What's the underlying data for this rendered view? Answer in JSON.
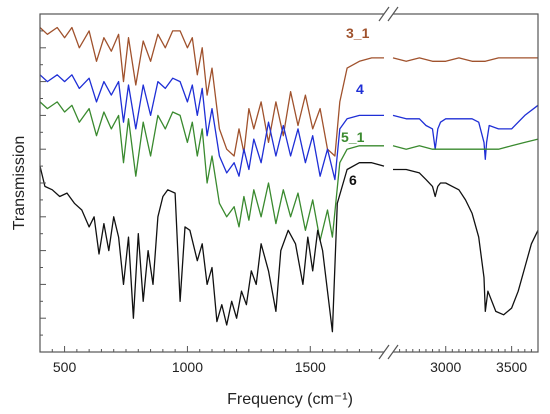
{
  "chart_data": {
    "type": "line",
    "title": "",
    "xlabel": "Frequency (cm⁻¹)",
    "ylabel": "Transmission",
    "x_axis_break": [
      1800,
      2600
    ],
    "xlim_left": [
      400,
      1800
    ],
    "xlim_right": [
      2600,
      3700
    ],
    "ylim": [
      0,
      1
    ],
    "x_ticks": [
      {
        "value": 500,
        "label": "500"
      },
      {
        "value": 1000,
        "label": "1000"
      },
      {
        "value": 1500,
        "label": "1500"
      },
      {
        "value": 3000,
        "label": "3000"
      },
      {
        "value": 3500,
        "label": "3500"
      }
    ],
    "grid": false,
    "legend": "series labels at right end of each curve",
    "series": [
      {
        "name": "3_1",
        "color": "#a0522d",
        "points": [
          [
            400,
            0.96
          ],
          [
            430,
            0.94
          ],
          [
            470,
            0.96
          ],
          [
            500,
            0.93
          ],
          [
            530,
            0.96
          ],
          [
            560,
            0.9
          ],
          [
            600,
            0.95
          ],
          [
            630,
            0.86
          ],
          [
            660,
            0.93
          ],
          [
            690,
            0.89
          ],
          [
            720,
            0.94
          ],
          [
            740,
            0.8
          ],
          [
            760,
            0.93
          ],
          [
            790,
            0.79
          ],
          [
            820,
            0.92
          ],
          [
            850,
            0.86
          ],
          [
            880,
            0.94
          ],
          [
            910,
            0.9
          ],
          [
            940,
            0.95
          ],
          [
            970,
            0.95
          ],
          [
            1000,
            0.9
          ],
          [
            1020,
            0.93
          ],
          [
            1040,
            0.82
          ],
          [
            1060,
            0.9
          ],
          [
            1080,
            0.76
          ],
          [
            1100,
            0.84
          ],
          [
            1130,
            0.66
          ],
          [
            1160,
            0.6
          ],
          [
            1190,
            0.58
          ],
          [
            1210,
            0.66
          ],
          [
            1230,
            0.59
          ],
          [
            1250,
            0.72
          ],
          [
            1270,
            0.66
          ],
          [
            1300,
            0.74
          ],
          [
            1330,
            0.62
          ],
          [
            1360,
            0.74
          ],
          [
            1390,
            0.64
          ],
          [
            1420,
            0.77
          ],
          [
            1450,
            0.67
          ],
          [
            1480,
            0.76
          ],
          [
            1510,
            0.66
          ],
          [
            1540,
            0.72
          ],
          [
            1570,
            0.6
          ],
          [
            1600,
            0.58
          ],
          [
            1620,
            0.74
          ],
          [
            1650,
            0.84
          ],
          [
            1700,
            0.86
          ],
          [
            1750,
            0.87
          ],
          [
            1800,
            0.87
          ],
          [
            2600,
            0.87
          ],
          [
            2700,
            0.86
          ],
          [
            2800,
            0.87
          ],
          [
            2900,
            0.86
          ],
          [
            3000,
            0.86
          ],
          [
            3100,
            0.87
          ],
          [
            3200,
            0.86
          ],
          [
            3300,
            0.86
          ],
          [
            3400,
            0.87
          ],
          [
            3500,
            0.87
          ],
          [
            3600,
            0.87
          ],
          [
            3700,
            0.87
          ]
        ]
      },
      {
        "name": "4",
        "color": "#1f2fd6",
        "points": [
          [
            400,
            0.82
          ],
          [
            430,
            0.8
          ],
          [
            470,
            0.82
          ],
          [
            500,
            0.8
          ],
          [
            530,
            0.82
          ],
          [
            560,
            0.78
          ],
          [
            600,
            0.81
          ],
          [
            630,
            0.74
          ],
          [
            660,
            0.8
          ],
          [
            690,
            0.76
          ],
          [
            720,
            0.8
          ],
          [
            740,
            0.68
          ],
          [
            760,
            0.79
          ],
          [
            790,
            0.66
          ],
          [
            820,
            0.79
          ],
          [
            850,
            0.7
          ],
          [
            880,
            0.8
          ],
          [
            910,
            0.78
          ],
          [
            940,
            0.81
          ],
          [
            970,
            0.8
          ],
          [
            1000,
            0.74
          ],
          [
            1020,
            0.79
          ],
          [
            1040,
            0.7
          ],
          [
            1060,
            0.78
          ],
          [
            1080,
            0.64
          ],
          [
            1100,
            0.72
          ],
          [
            1130,
            0.58
          ],
          [
            1160,
            0.53
          ],
          [
            1190,
            0.56
          ],
          [
            1210,
            0.52
          ],
          [
            1230,
            0.6
          ],
          [
            1250,
            0.54
          ],
          [
            1270,
            0.63
          ],
          [
            1300,
            0.56
          ],
          [
            1330,
            0.68
          ],
          [
            1360,
            0.58
          ],
          [
            1390,
            0.67
          ],
          [
            1420,
            0.58
          ],
          [
            1450,
            0.66
          ],
          [
            1480,
            0.56
          ],
          [
            1510,
            0.64
          ],
          [
            1540,
            0.52
          ],
          [
            1570,
            0.6
          ],
          [
            1600,
            0.51
          ],
          [
            1620,
            0.66
          ],
          [
            1650,
            0.69
          ],
          [
            1700,
            0.7
          ],
          [
            1750,
            0.7
          ],
          [
            1800,
            0.7
          ],
          [
            2600,
            0.7
          ],
          [
            2700,
            0.69
          ],
          [
            2800,
            0.69
          ],
          [
            2850,
            0.67
          ],
          [
            2900,
            0.66
          ],
          [
            2920,
            0.6
          ],
          [
            2940,
            0.66
          ],
          [
            2960,
            0.68
          ],
          [
            3000,
            0.69
          ],
          [
            3100,
            0.69
          ],
          [
            3200,
            0.69
          ],
          [
            3250,
            0.68
          ],
          [
            3290,
            0.62
          ],
          [
            3300,
            0.57
          ],
          [
            3310,
            0.62
          ],
          [
            3330,
            0.67
          ],
          [
            3400,
            0.66
          ],
          [
            3500,
            0.66
          ],
          [
            3600,
            0.7
          ],
          [
            3700,
            0.73
          ]
        ]
      },
      {
        "name": "5_1",
        "color": "#3a8a2f",
        "points": [
          [
            400,
            0.74
          ],
          [
            430,
            0.72
          ],
          [
            470,
            0.74
          ],
          [
            500,
            0.71
          ],
          [
            530,
            0.73
          ],
          [
            560,
            0.68
          ],
          [
            600,
            0.72
          ],
          [
            630,
            0.64
          ],
          [
            660,
            0.71
          ],
          [
            690,
            0.66
          ],
          [
            720,
            0.7
          ],
          [
            740,
            0.56
          ],
          [
            760,
            0.69
          ],
          [
            790,
            0.52
          ],
          [
            820,
            0.68
          ],
          [
            850,
            0.58
          ],
          [
            880,
            0.7
          ],
          [
            910,
            0.66
          ],
          [
            940,
            0.71
          ],
          [
            970,
            0.7
          ],
          [
            1000,
            0.62
          ],
          [
            1020,
            0.68
          ],
          [
            1040,
            0.58
          ],
          [
            1060,
            0.66
          ],
          [
            1080,
            0.5
          ],
          [
            1100,
            0.58
          ],
          [
            1130,
            0.44
          ],
          [
            1160,
            0.4
          ],
          [
            1190,
            0.43
          ],
          [
            1210,
            0.37
          ],
          [
            1230,
            0.46
          ],
          [
            1250,
            0.39
          ],
          [
            1270,
            0.48
          ],
          [
            1300,
            0.4
          ],
          [
            1330,
            0.5
          ],
          [
            1360,
            0.38
          ],
          [
            1390,
            0.48
          ],
          [
            1420,
            0.4
          ],
          [
            1450,
            0.47
          ],
          [
            1480,
            0.36
          ],
          [
            1510,
            0.45
          ],
          [
            1540,
            0.33
          ],
          [
            1570,
            0.42
          ],
          [
            1590,
            0.34
          ],
          [
            1620,
            0.56
          ],
          [
            1650,
            0.6
          ],
          [
            1700,
            0.61
          ],
          [
            1750,
            0.61
          ],
          [
            1800,
            0.61
          ],
          [
            2600,
            0.61
          ],
          [
            2700,
            0.6
          ],
          [
            2800,
            0.61
          ],
          [
            2900,
            0.6
          ],
          [
            3000,
            0.6
          ],
          [
            3100,
            0.6
          ],
          [
            3200,
            0.6
          ],
          [
            3300,
            0.6
          ],
          [
            3400,
            0.6
          ],
          [
            3500,
            0.61
          ],
          [
            3600,
            0.62
          ],
          [
            3700,
            0.63
          ]
        ]
      },
      {
        "name": "6",
        "color": "#111111",
        "points": [
          [
            400,
            0.55
          ],
          [
            420,
            0.49
          ],
          [
            450,
            0.48
          ],
          [
            480,
            0.46
          ],
          [
            510,
            0.47
          ],
          [
            540,
            0.44
          ],
          [
            570,
            0.42
          ],
          [
            600,
            0.37
          ],
          [
            620,
            0.4
          ],
          [
            640,
            0.29
          ],
          [
            660,
            0.38
          ],
          [
            680,
            0.3
          ],
          [
            700,
            0.4
          ],
          [
            720,
            0.34
          ],
          [
            740,
            0.2
          ],
          [
            760,
            0.34
          ],
          [
            780,
            0.1
          ],
          [
            800,
            0.35
          ],
          [
            820,
            0.15
          ],
          [
            840,
            0.3
          ],
          [
            860,
            0.2
          ],
          [
            880,
            0.4
          ],
          [
            900,
            0.46
          ],
          [
            920,
            0.48
          ],
          [
            950,
            0.47
          ],
          [
            970,
            0.15
          ],
          [
            990,
            0.37
          ],
          [
            1010,
            0.36
          ],
          [
            1040,
            0.27
          ],
          [
            1060,
            0.32
          ],
          [
            1080,
            0.2
          ],
          [
            1100,
            0.25
          ],
          [
            1120,
            0.09
          ],
          [
            1140,
            0.14
          ],
          [
            1160,
            0.08
          ],
          [
            1180,
            0.15
          ],
          [
            1200,
            0.1
          ],
          [
            1220,
            0.18
          ],
          [
            1240,
            0.14
          ],
          [
            1260,
            0.24
          ],
          [
            1280,
            0.2
          ],
          [
            1300,
            0.32
          ],
          [
            1330,
            0.24
          ],
          [
            1360,
            0.12
          ],
          [
            1380,
            0.3
          ],
          [
            1410,
            0.36
          ],
          [
            1440,
            0.32
          ],
          [
            1470,
            0.2
          ],
          [
            1490,
            0.34
          ],
          [
            1510,
            0.24
          ],
          [
            1530,
            0.36
          ],
          [
            1550,
            0.3
          ],
          [
            1570,
            0.18
          ],
          [
            1590,
            0.06
          ],
          [
            1610,
            0.44
          ],
          [
            1650,
            0.54
          ],
          [
            1700,
            0.56
          ],
          [
            1750,
            0.56
          ],
          [
            1800,
            0.55
          ],
          [
            2600,
            0.54
          ],
          [
            2700,
            0.54
          ],
          [
            2800,
            0.53
          ],
          [
            2850,
            0.51
          ],
          [
            2900,
            0.49
          ],
          [
            2920,
            0.46
          ],
          [
            2940,
            0.49
          ],
          [
            2960,
            0.5
          ],
          [
            3000,
            0.5
          ],
          [
            3050,
            0.49
          ],
          [
            3100,
            0.48
          ],
          [
            3150,
            0.45
          ],
          [
            3200,
            0.41
          ],
          [
            3250,
            0.34
          ],
          [
            3290,
            0.22
          ],
          [
            3300,
            0.12
          ],
          [
            3320,
            0.18
          ],
          [
            3380,
            0.12
          ],
          [
            3440,
            0.11
          ],
          [
            3500,
            0.13
          ],
          [
            3550,
            0.18
          ],
          [
            3600,
            0.25
          ],
          [
            3650,
            0.32
          ],
          [
            3700,
            0.36
          ]
        ]
      }
    ]
  }
}
